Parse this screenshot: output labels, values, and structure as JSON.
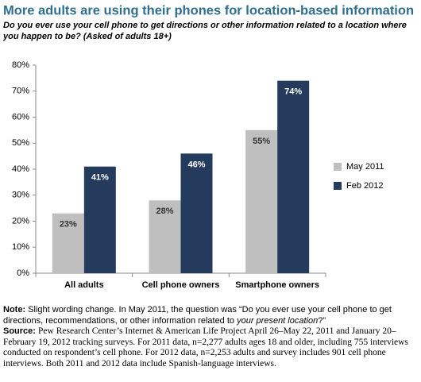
{
  "chart_data": {
    "type": "bar",
    "title": "More adults are using their phones for location-based information",
    "subtitle": "Do you ever use your cell phone to get directions or other information related to a location where you happen to be? (Asked of adults 18+)",
    "categories": [
      "All adults",
      "Cell phone owners",
      "Smartphone owners"
    ],
    "series": [
      {
        "name": "May 2011",
        "color": "#bfbfbf",
        "values": [
          23,
          28,
          55
        ],
        "value_labels": [
          "23%",
          "28%",
          "55%"
        ]
      },
      {
        "name": "Feb 2012",
        "color": "#243b5e",
        "values": [
          41,
          46,
          74
        ],
        "value_labels": [
          "41%",
          "46%",
          "74%"
        ]
      }
    ],
    "ylim": [
      0,
      80
    ],
    "yticks": [
      {
        "value": 0,
        "label": "0%"
      },
      {
        "value": 10,
        "label": "10%"
      },
      {
        "value": 20,
        "label": "20%"
      },
      {
        "value": 30,
        "label": "30%"
      },
      {
        "value": 40,
        "label": "40%"
      },
      {
        "value": 50,
        "label": "50%"
      },
      {
        "value": 60,
        "label": "60%"
      },
      {
        "value": 70,
        "label": "70%"
      },
      {
        "value": 80,
        "label": "80%"
      }
    ],
    "grid": false,
    "legend": "right",
    "note": {
      "label": "Note:",
      "text": "Slight wording change. In May 2011, the question was “Do you ever use your cell phone to get directions, recommendations, or other information related to ",
      "italic": "your present location",
      "end": "?”"
    },
    "source": {
      "label": "Source:",
      "text": "Pew Research Center’s Internet & American Life Project April 26–May 22, 2011 and January 20–February 19, 2012 tracking surveys. For 2011 data, n=2,277 adults ages 18 and older, including 755 interviews conducted on respondent’s cell phone. For 2012 data, n=2,253 adults and survey includes 901 cell phone interviews. Both 2011 and 2012 data include Spanish-language interviews."
    }
  }
}
